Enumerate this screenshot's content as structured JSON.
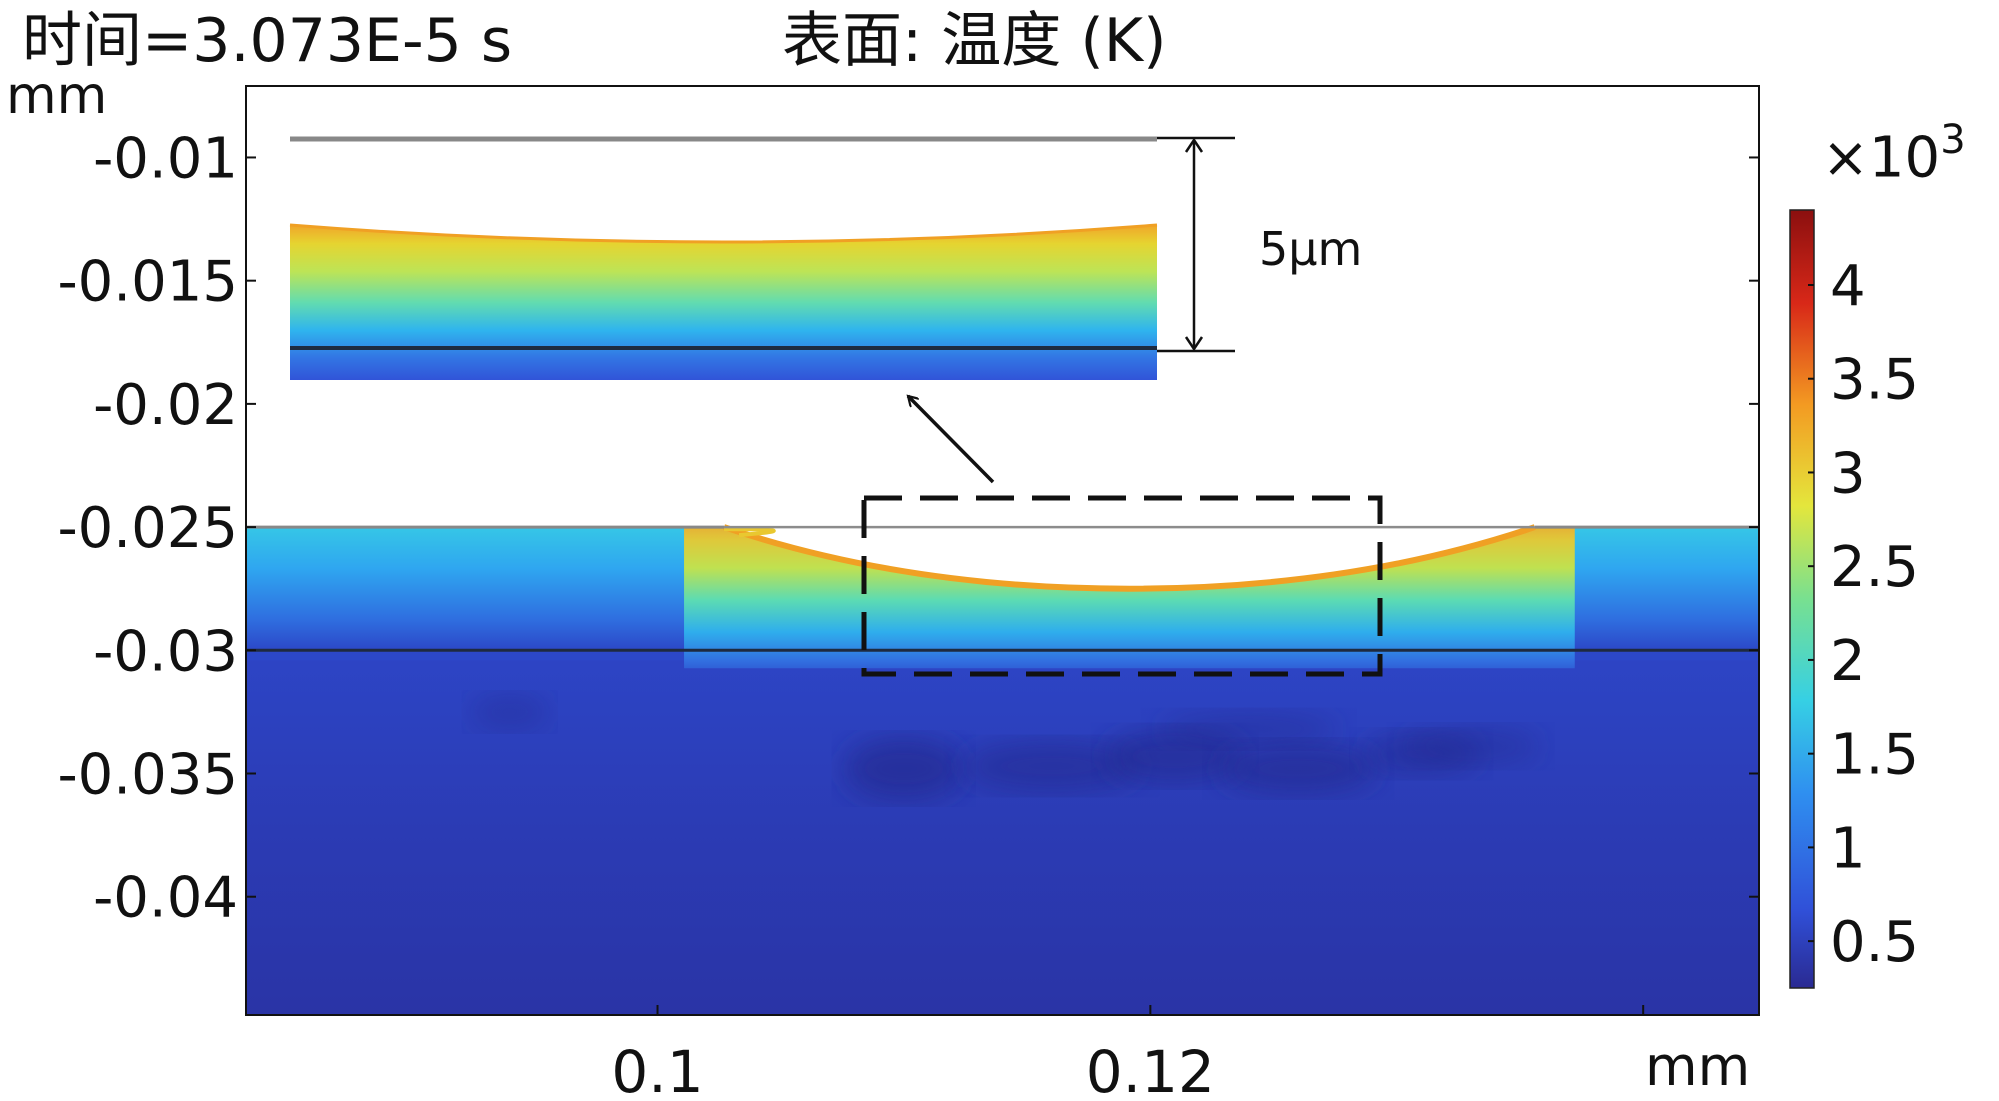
{
  "header": {
    "time_label": "时间=3.073E-5 s",
    "surface_label": "表面: 温度 (K)"
  },
  "chart_data": {
    "type": "heatmap",
    "title": "表面: 温度 (K)",
    "subtitle": "时间=3.073E-5 s",
    "xlabel": "mm",
    "ylabel": "mm",
    "xlim": [
      0.0833,
      0.1447
    ],
    "ylim": [
      -0.0448,
      -0.0071
    ],
    "x_ticks": [
      {
        "value": 0.1,
        "label": "0.1"
      },
      {
        "value": 0.12,
        "label": "0.12"
      },
      {
        "value": 0.14,
        "label": ""
      }
    ],
    "y_ticks": [
      {
        "value": -0.01,
        "label": "-0.01"
      },
      {
        "value": -0.015,
        "label": "-0.015"
      },
      {
        "value": -0.02,
        "label": "-0.02"
      },
      {
        "value": -0.025,
        "label": "-0.025"
      },
      {
        "value": -0.03,
        "label": "-0.03"
      },
      {
        "value": -0.035,
        "label": "-0.035"
      },
      {
        "value": -0.04,
        "label": "-0.04"
      }
    ],
    "colorbar": {
      "multiplier": "×10",
      "multiplier_exp": "3",
      "range": [
        0.25,
        4.4
      ],
      "ticks": [
        {
          "value": 0.5,
          "label": "0.5"
        },
        {
          "value": 1,
          "label": "1"
        },
        {
          "value": 1.5,
          "label": "1.5"
        },
        {
          "value": 2,
          "label": "2"
        },
        {
          "value": 2.5,
          "label": "2.5"
        },
        {
          "value": 3,
          "label": "3"
        },
        {
          "value": 3.5,
          "label": "3.5"
        },
        {
          "value": 4,
          "label": "4"
        }
      ]
    },
    "field": {
      "original_surface_y": -0.025,
      "layer_interface_y": -0.03,
      "crater_x_range": [
        0.1027,
        0.1356
      ],
      "crater_min_y": -0.0275,
      "surface_temperature_k": 3300,
      "ambient_temperature_k": 350
    },
    "inset": {
      "label": "5μm"
    },
    "grid": false,
    "legend": "colorbar-right"
  }
}
